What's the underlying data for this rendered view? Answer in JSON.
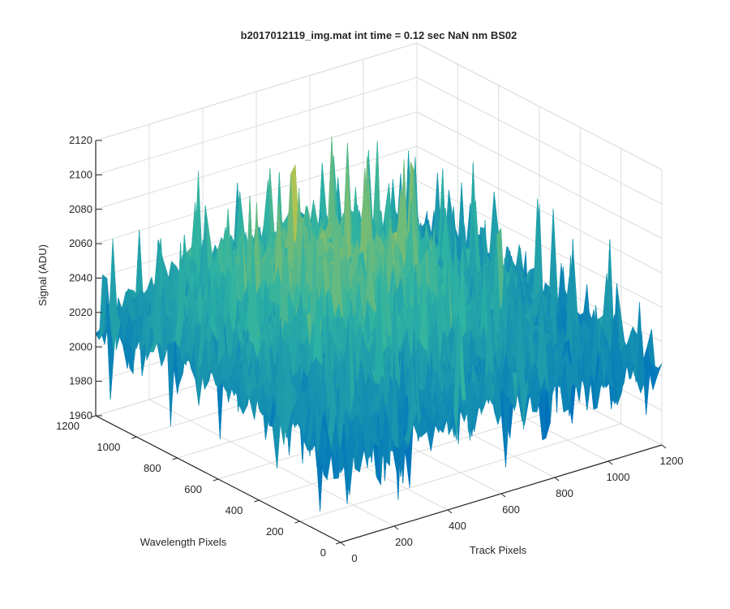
{
  "chart_data": {
    "type": "surface",
    "title": "b2017012119_img.mat int time = 0.12 sec  NaN nm BS02",
    "xlabel": "Track Pixels",
    "ylabel": "Wavelength Pixels",
    "zlabel": "Signal (ADU)",
    "xlim": [
      0,
      1200
    ],
    "ylim": [
      0,
      1200
    ],
    "zlim": [
      1960,
      2120
    ],
    "xticks": [
      "0",
      "200",
      "400",
      "600",
      "800",
      "1000",
      "1200"
    ],
    "yticks": [
      "0",
      "200",
      "400",
      "600",
      "800",
      "1000",
      "1200"
    ],
    "zticks": [
      "1960",
      "1980",
      "2000",
      "2020",
      "2040",
      "2060",
      "2080",
      "2100",
      "2120"
    ],
    "grid": true,
    "colormap": "parula",
    "colors": {
      "low": "#0072bd",
      "mid": "#2fb3a2",
      "high": "#d9c838",
      "axis": "#262626",
      "grid": "#dcdcdc"
    },
    "surface_summary": {
      "mean_signal": 2025,
      "min_signal": 1960,
      "max_signal": 2105,
      "center_signal": 2055,
      "edge_signal": 2005
    }
  }
}
